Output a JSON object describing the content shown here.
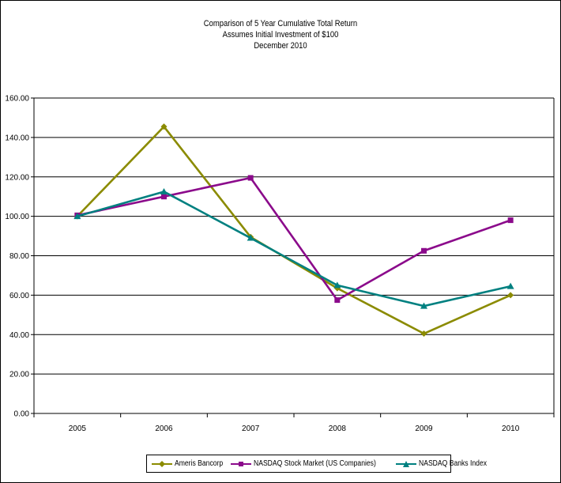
{
  "chart_data": {
    "type": "line",
    "title": "Comparison of 5 Year Cumulative Total Return",
    "subtitle_lines": [
      "Assumes Initial Investment of $100",
      "December 2010"
    ],
    "xlabel": "",
    "ylabel": "",
    "categories": [
      "2005",
      "2006",
      "2007",
      "2008",
      "2009",
      "2010"
    ],
    "ylim": [
      0,
      160
    ],
    "yticks": [
      "0.00",
      "20.00",
      "40.00",
      "60.00",
      "80.00",
      "100.00",
      "120.00",
      "140.00",
      "160.00"
    ],
    "grid": true,
    "legend_position": "bottom",
    "series": [
      {
        "name": "Ameris Bancorp",
        "color": "#8b8b00",
        "marker": "diamond",
        "values": [
          100.0,
          145.5,
          89.5,
          63.5,
          40.5,
          60.0
        ]
      },
      {
        "name": "NASDAQ Stock Market (US Companies)",
        "color": "#8b0a8b",
        "marker": "square",
        "values": [
          100.5,
          110.0,
          119.5,
          57.5,
          82.5,
          98.0
        ]
      },
      {
        "name": "NASDAQ Banks Index",
        "color": "#008080",
        "marker": "triangle",
        "values": [
          100.0,
          112.5,
          89.0,
          65.0,
          54.5,
          64.5
        ]
      }
    ]
  }
}
